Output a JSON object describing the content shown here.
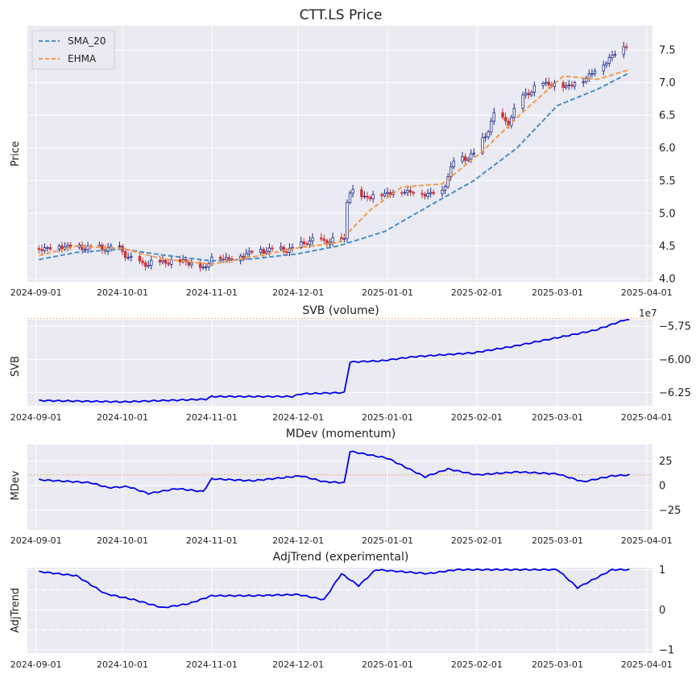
{
  "chart_data": [
    {
      "panel": "price",
      "type": "candlestick",
      "title": "CTT.LS Price",
      "ylabel": "Price",
      "xlim": [
        "2024-08-29",
        "2025-04-03"
      ],
      "ylim": [
        3.95,
        7.87
      ],
      "x_ticks": [
        "2024-09-01",
        "2024-10-01",
        "2024-11-01",
        "2024-12-01",
        "2025-01-01",
        "2025-02-01",
        "2025-03-01",
        "2025-04-01"
      ],
      "y_ticks": [
        4.0,
        4.5,
        5.0,
        5.5,
        6.0,
        6.5,
        7.0,
        7.5
      ],
      "y_ticks_side": "right",
      "grid": true,
      "legend": {
        "position": "top-left",
        "entries": [
          "SMA_20",
          "EHMA"
        ]
      },
      "colors": {
        "background": "#eaeaf2",
        "grid": "#ffffff",
        "sma": "#4a8ec4",
        "ehma": "#f39a4a",
        "up": "#1f2a8a",
        "down": "#cc3333"
      },
      "close_anchors": [
        [
          "2024-09-02",
          4.46
        ],
        [
          "2024-09-10",
          4.5
        ],
        [
          "2024-09-20",
          4.48
        ],
        [
          "2024-09-30",
          4.46
        ],
        [
          "2024-10-04",
          4.3
        ],
        [
          "2024-10-08",
          4.23
        ],
        [
          "2024-10-15",
          4.26
        ],
        [
          "2024-10-22",
          4.28
        ],
        [
          "2024-10-28",
          4.2
        ],
        [
          "2024-10-30",
          4.17
        ],
        [
          "2024-11-01",
          4.35
        ],
        [
          "2024-11-08",
          4.3
        ],
        [
          "2024-11-15",
          4.42
        ],
        [
          "2024-11-22",
          4.45
        ],
        [
          "2024-11-29",
          4.45
        ],
        [
          "2024-12-04",
          4.58
        ],
        [
          "2024-12-12",
          4.58
        ],
        [
          "2024-12-17",
          4.6
        ],
        [
          "2024-12-18",
          5.2
        ],
        [
          "2024-12-19",
          5.35
        ],
        [
          "2024-12-24",
          5.25
        ],
        [
          "2024-12-30",
          5.3
        ],
        [
          "2025-01-06",
          5.35
        ],
        [
          "2025-01-15",
          5.3
        ],
        [
          "2025-01-20",
          5.35
        ],
        [
          "2025-01-24",
          5.8
        ],
        [
          "2025-01-31",
          5.9
        ],
        [
          "2025-02-04",
          6.2
        ],
        [
          "2025-02-07",
          6.5
        ],
        [
          "2025-02-12",
          6.4
        ],
        [
          "2025-02-17",
          6.8
        ],
        [
          "2025-02-24",
          7.0
        ],
        [
          "2025-03-04",
          6.95
        ],
        [
          "2025-03-10",
          7.05
        ],
        [
          "2025-03-17",
          7.3
        ],
        [
          "2025-03-21",
          7.45
        ],
        [
          "2025-03-25",
          7.6
        ]
      ],
      "series": [
        {
          "name": "SMA_20",
          "style": "dashed",
          "points": [
            [
              "2024-09-02",
              4.29
            ],
            [
              "2024-09-15",
              4.4
            ],
            [
              "2024-10-01",
              4.45
            ],
            [
              "2024-10-15",
              4.36
            ],
            [
              "2024-11-01",
              4.27
            ],
            [
              "2024-11-15",
              4.3
            ],
            [
              "2024-12-01",
              4.38
            ],
            [
              "2024-12-15",
              4.5
            ],
            [
              "2024-12-31",
              4.72
            ],
            [
              "2025-01-15",
              5.1
            ],
            [
              "2025-01-31",
              5.5
            ],
            [
              "2025-02-15",
              6.0
            ],
            [
              "2025-03-01",
              6.65
            ],
            [
              "2025-03-15",
              6.9
            ],
            [
              "2025-03-26",
              7.15
            ]
          ]
        },
        {
          "name": "EHMA",
          "style": "dashed",
          "points": [
            [
              "2024-09-02",
              4.35
            ],
            [
              "2024-09-15",
              4.5
            ],
            [
              "2024-10-01",
              4.46
            ],
            [
              "2024-10-15",
              4.3
            ],
            [
              "2024-11-01",
              4.22
            ],
            [
              "2024-11-15",
              4.33
            ],
            [
              "2024-12-01",
              4.47
            ],
            [
              "2024-12-15",
              4.55
            ],
            [
              "2024-12-26",
              5.05
            ],
            [
              "2025-01-06",
              5.4
            ],
            [
              "2025-01-20",
              5.45
            ],
            [
              "2025-02-03",
              5.95
            ],
            [
              "2025-02-17",
              6.55
            ],
            [
              "2025-03-03",
              7.1
            ],
            [
              "2025-03-15",
              7.05
            ],
            [
              "2025-03-26",
              7.2
            ]
          ]
        }
      ]
    },
    {
      "panel": "svb",
      "type": "line",
      "title": "SVB (volume)",
      "ylabel": "SVB",
      "scale_label": "1e7",
      "ylim": [
        -6.35,
        -5.7
      ],
      "y_ticks": [
        -6.25,
        -6.0,
        -5.75
      ],
      "y_tick_labels": [
        "−6.25",
        "−6.00",
        "−5.75"
      ],
      "reference_line": -5.69,
      "colors": {
        "line": "#0000ee",
        "reference": "#f39a4a"
      },
      "series": [
        {
          "name": "SVB",
          "points": [
            [
              "2024-09-02",
              -6.31
            ],
            [
              "2024-10-01",
              -6.32
            ],
            [
              "2024-10-30",
              -6.3
            ],
            [
              "2024-11-01",
              -6.28
            ],
            [
              "2024-11-29",
              -6.28
            ],
            [
              "2024-12-02",
              -6.26
            ],
            [
              "2024-12-17",
              -6.25
            ],
            [
              "2024-12-19",
              -6.02
            ],
            [
              "2024-12-30",
              -6.01
            ],
            [
              "2025-01-10",
              -5.98
            ],
            [
              "2025-01-31",
              -5.95
            ],
            [
              "2025-02-14",
              -5.9
            ],
            [
              "2025-02-28",
              -5.84
            ],
            [
              "2025-03-14",
              -5.78
            ],
            [
              "2025-03-26",
              -5.69
            ]
          ]
        }
      ]
    },
    {
      "panel": "mdev",
      "type": "line",
      "title": "MDev (momentum)",
      "ylabel": "MDev",
      "ylim": [
        -45,
        42
      ],
      "y_ticks": [
        -25,
        0,
        25
      ],
      "y_tick_labels": [
        "−25",
        "0",
        "25"
      ],
      "reference_line": 11,
      "colors": {
        "line": "#0000ee",
        "reference": "#f39a4a"
      },
      "series": [
        {
          "name": "MDev",
          "points": [
            [
              "2024-09-02",
              6
            ],
            [
              "2024-09-20",
              3
            ],
            [
              "2024-09-26",
              -2
            ],
            [
              "2024-10-03",
              -1
            ],
            [
              "2024-10-10",
              -8
            ],
            [
              "2024-10-20",
              -3
            ],
            [
              "2024-10-29",
              -6
            ],
            [
              "2024-11-01",
              7
            ],
            [
              "2024-11-15",
              5
            ],
            [
              "2024-12-02",
              10
            ],
            [
              "2024-12-10",
              4
            ],
            [
              "2024-12-17",
              3
            ],
            [
              "2024-12-19",
              35
            ],
            [
              "2025-01-01",
              28
            ],
            [
              "2025-01-14",
              9
            ],
            [
              "2025-01-22",
              17
            ],
            [
              "2025-02-01",
              11
            ],
            [
              "2025-02-15",
              14
            ],
            [
              "2025-03-01",
              12
            ],
            [
              "2025-03-10",
              4
            ],
            [
              "2025-03-20",
              10
            ],
            [
              "2025-03-26",
              11
            ]
          ]
        }
      ]
    },
    {
      "panel": "adjtrend",
      "type": "line",
      "title": "AdjTrend (experimental)",
      "ylabel": "AdjTrend",
      "ylim": [
        -1.08,
        1.05
      ],
      "y_ticks": [
        -1,
        0,
        1
      ],
      "y_tick_labels": [
        "−1",
        "0",
        "1"
      ],
      "reference_lines": [
        0.5,
        -0.5
      ],
      "colors": {
        "line": "#0000ee",
        "reference": "#ffffff"
      },
      "series": [
        {
          "name": "AdjTrend",
          "points": [
            [
              "2024-09-02",
              0.95
            ],
            [
              "2024-09-15",
              0.85
            ],
            [
              "2024-09-25",
              0.4
            ],
            [
              "2024-10-05",
              0.25
            ],
            [
              "2024-10-15",
              0.05
            ],
            [
              "2024-10-24",
              0.15
            ],
            [
              "2024-11-01",
              0.35
            ],
            [
              "2024-11-15",
              0.35
            ],
            [
              "2024-12-01",
              0.38
            ],
            [
              "2024-12-10",
              0.25
            ],
            [
              "2024-12-16",
              0.9
            ],
            [
              "2024-12-22",
              0.6
            ],
            [
              "2024-12-28",
              1.0
            ],
            [
              "2025-01-15",
              0.9
            ],
            [
              "2025-01-25",
              1.0
            ],
            [
              "2025-03-01",
              1.0
            ],
            [
              "2025-03-08",
              0.55
            ],
            [
              "2025-03-20",
              1.0
            ],
            [
              "2025-03-26",
              1.0
            ]
          ]
        }
      ]
    }
  ]
}
